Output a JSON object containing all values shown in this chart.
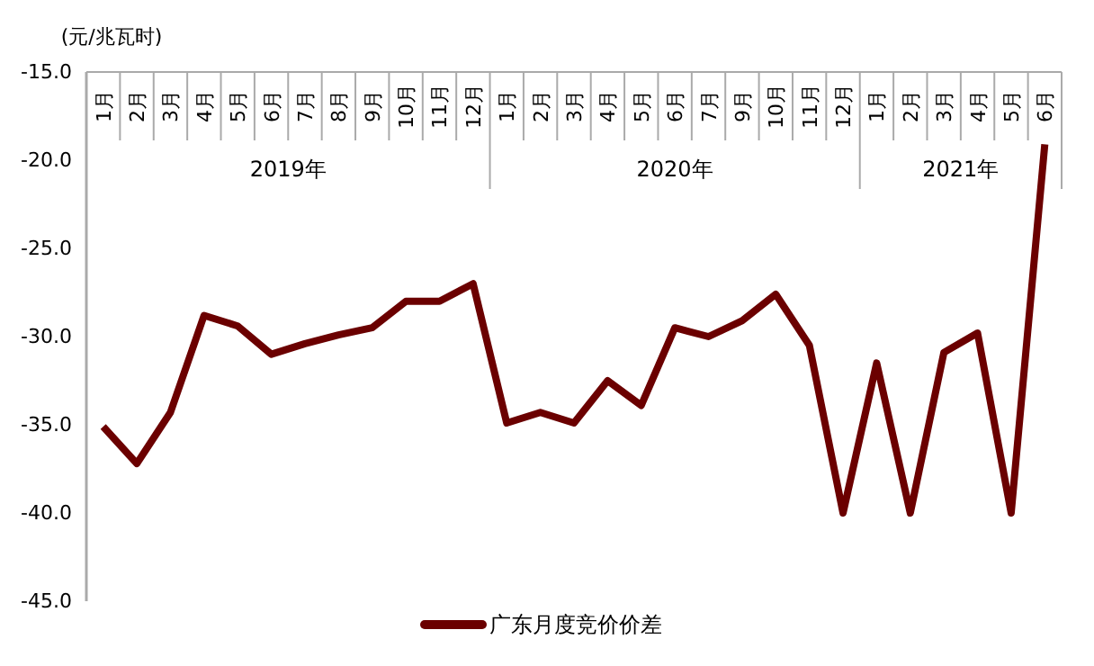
{
  "chart_data": {
    "type": "line",
    "ylabel": "(元/兆瓦时)",
    "categories": [
      "1月",
      "2月",
      "3月",
      "4月",
      "5月",
      "6月",
      "7月",
      "8月",
      "9月",
      "10月",
      "11月",
      "12月",
      "1月",
      "2月",
      "3月",
      "4月",
      "5月",
      "6月",
      "7月",
      "9月",
      "10月",
      "11月",
      "12月",
      "1月",
      "2月",
      "3月",
      "4月",
      "5月",
      "6月"
    ],
    "annotations": [
      "2019年",
      "2020年",
      "2021年"
    ],
    "series": [
      {
        "name": "广东月度竞价价差",
        "color": "#6b0000",
        "values": [
          -35.1,
          -37.2,
          -34.3,
          -28.8,
          -29.4,
          -31.0,
          -30.4,
          -29.9,
          -29.5,
          -28.0,
          -28.0,
          -27.0,
          -34.9,
          -34.3,
          -34.9,
          -32.5,
          -33.9,
          -29.5,
          -30.0,
          -29.1,
          -27.6,
          -30.5,
          -40.0,
          -31.5,
          -40.0,
          -30.9,
          -29.8,
          -40.0,
          -19.1
        ]
      }
    ],
    "ylim": [
      -45,
      -15
    ],
    "yticks": [
      {
        "value": -45,
        "label": "-45.0"
      },
      {
        "value": -40,
        "label": "-40.0"
      },
      {
        "value": -35,
        "label": "-35.0"
      },
      {
        "value": -30,
        "label": "-30.0"
      },
      {
        "value": -25,
        "label": "-25.0"
      },
      {
        "value": -20,
        "label": "-20.0"
      },
      {
        "value": -15,
        "label": "-15.0"
      }
    ],
    "grid": false,
    "legend": "bottom",
    "marker": "none",
    "line_style": "solid"
  }
}
